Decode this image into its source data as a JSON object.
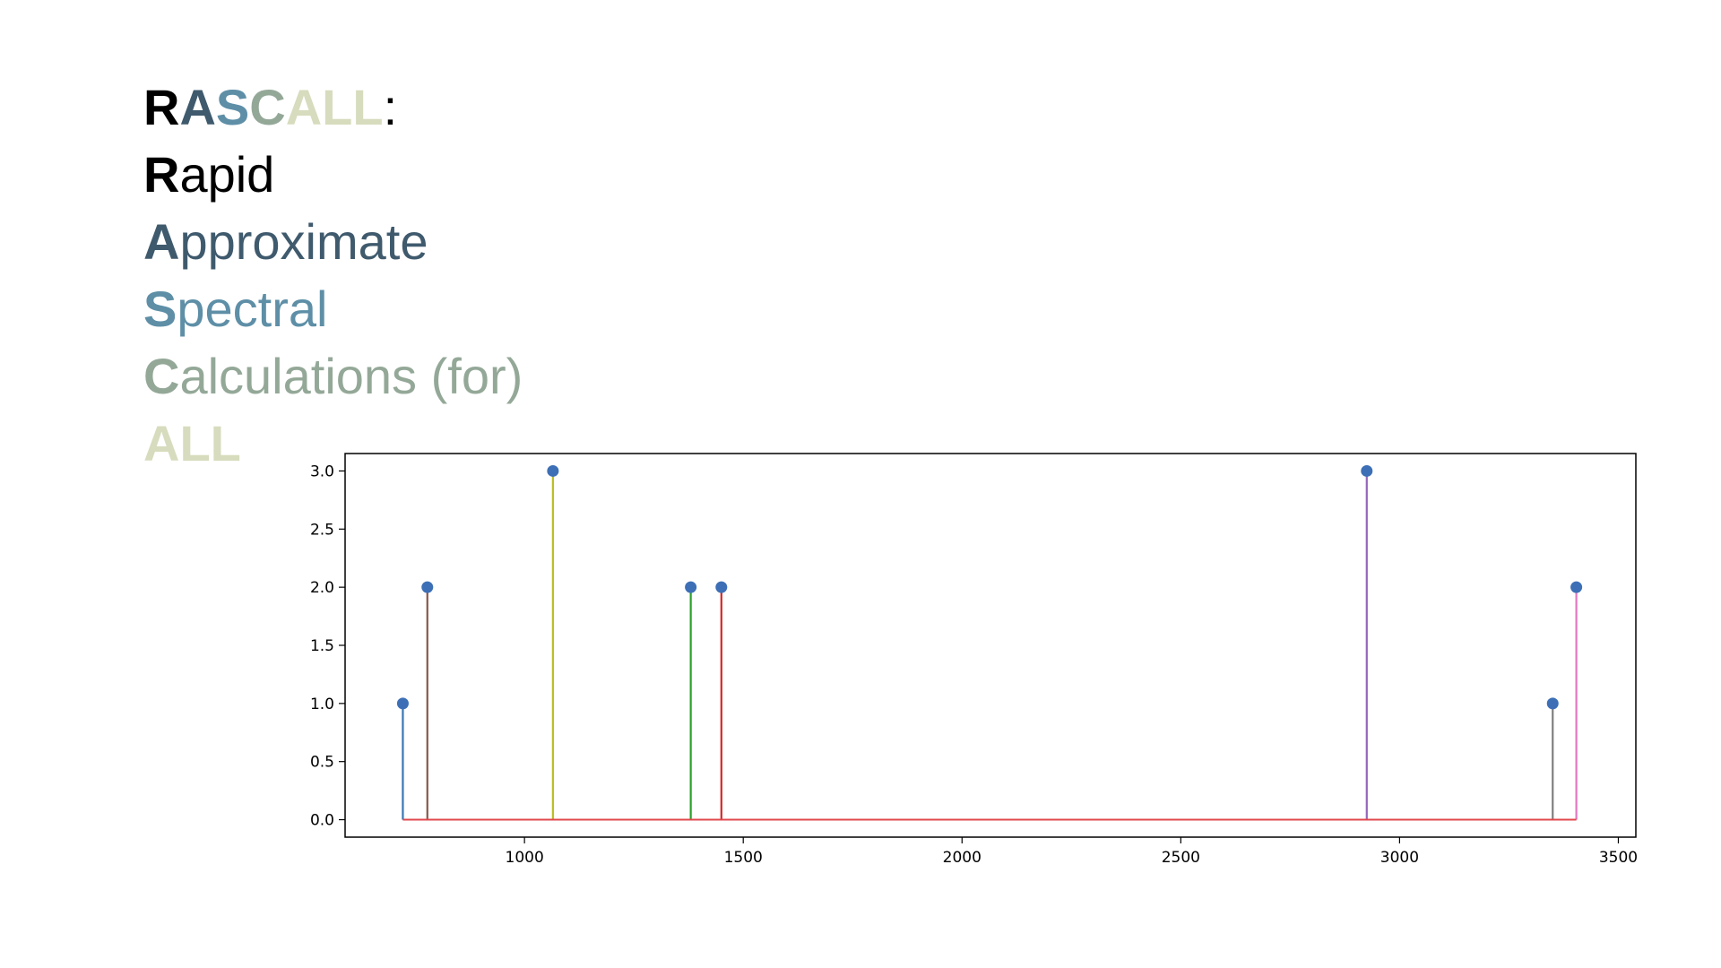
{
  "acronym": {
    "title_letters": [
      {
        "text": "R",
        "color": "#000000"
      },
      {
        "text": "A",
        "color": "#3f5a6d"
      },
      {
        "text": "S",
        "color": "#5e8fa7"
      },
      {
        "text": "C",
        "color": "#94a898"
      },
      {
        "text": "ALL",
        "color": "#d6dcbd"
      }
    ],
    "title_colon": ":",
    "lines": [
      {
        "initial": "R",
        "rest": "apid",
        "color": "#000000"
      },
      {
        "initial": "A",
        "rest": "pproximate",
        "color": "#3f5a6d"
      },
      {
        "initial": "S",
        "rest": "pectral",
        "color": "#5e8fa7"
      },
      {
        "initial": "C",
        "rest": "alculations (for)",
        "color": "#94a898"
      },
      {
        "initial": "ALL",
        "rest": "",
        "color": "#d6dcbd"
      }
    ]
  },
  "chart_data": {
    "type": "stem",
    "title": "",
    "xlabel": "",
    "ylabel": "",
    "xlim": [
      590,
      3540
    ],
    "ylim": [
      -0.15,
      3.15
    ],
    "xticks": [
      1000,
      1500,
      2000,
      2500,
      3000,
      3500
    ],
    "yticks": [
      0.0,
      0.5,
      1.0,
      1.5,
      2.0,
      2.5,
      3.0
    ],
    "xtick_labels": [
      "1000",
      "1500",
      "2000",
      "2500",
      "3000",
      "3500"
    ],
    "ytick_labels": [
      "0.0",
      "0.5",
      "1.0",
      "1.5",
      "2.0",
      "2.5",
      "3.0"
    ],
    "grid": false,
    "baseline": {
      "y": 0.0,
      "xmin": 722,
      "xmax": 3404,
      "color": "#e0474c"
    },
    "marker_color": "#3d6fb6",
    "points": [
      {
        "x": 722,
        "y": 1,
        "color": "#3778b4"
      },
      {
        "x": 778,
        "y": 2,
        "color": "#8b564b"
      },
      {
        "x": 1065,
        "y": 3,
        "color": "#bcbd22"
      },
      {
        "x": 1380,
        "y": 2,
        "color": "#2ca02c"
      },
      {
        "x": 1450,
        "y": 2,
        "color": "#d62728"
      },
      {
        "x": 2925,
        "y": 3,
        "color": "#9467bd"
      },
      {
        "x": 3350,
        "y": 1,
        "color": "#7f7f7f"
      },
      {
        "x": 3404,
        "y": 2,
        "color": "#e377c2"
      }
    ]
  }
}
